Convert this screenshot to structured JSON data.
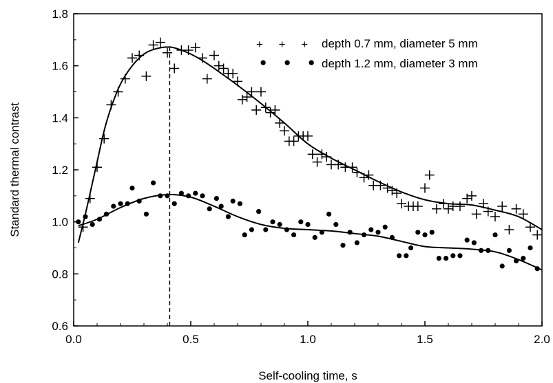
{
  "chart_data": {
    "type": "scatter",
    "title": "",
    "xlabel": "Self-cooling time, s",
    "ylabel": "Standard thermal contrast",
    "xlim": [
      0.0,
      2.0
    ],
    "ylim": [
      0.6,
      1.8
    ],
    "x_ticks": [
      0.0,
      0.5,
      1.0,
      1.5,
      2.0
    ],
    "x_tick_labels": [
      "0.0",
      "0.5",
      "1.0",
      "1.5",
      "2.0"
    ],
    "y_ticks": [
      0.6,
      0.8,
      1.0,
      1.2,
      1.4,
      1.6,
      1.8
    ],
    "y_tick_labels": [
      "0.6",
      "0.8",
      "1.0",
      "1.2",
      "1.4",
      "1.6",
      "1.8"
    ],
    "grid": false,
    "legend_position": "top-right",
    "marker_line": {
      "x": 0.41,
      "y_from": 0.6,
      "y_to": 1.67,
      "style": "dashed"
    },
    "series": [
      {
        "name": "depth 0.7 mm, diameter 5 mm",
        "marker": "plus",
        "legend_symbol": "+ + +",
        "points": [
          [
            0.04,
            0.98
          ],
          [
            0.07,
            1.09
          ],
          [
            0.1,
            1.21
          ],
          [
            0.13,
            1.32
          ],
          [
            0.16,
            1.45
          ],
          [
            0.19,
            1.5
          ],
          [
            0.22,
            1.55
          ],
          [
            0.25,
            1.63
          ],
          [
            0.28,
            1.64
          ],
          [
            0.31,
            1.56
          ],
          [
            0.34,
            1.68
          ],
          [
            0.37,
            1.69
          ],
          [
            0.4,
            1.65
          ],
          [
            0.43,
            1.59
          ],
          [
            0.46,
            1.66
          ],
          [
            0.49,
            1.66
          ],
          [
            0.52,
            1.67
          ],
          [
            0.55,
            1.63
          ],
          [
            0.57,
            1.55
          ],
          [
            0.6,
            1.64
          ],
          [
            0.62,
            1.6
          ],
          [
            0.64,
            1.59
          ],
          [
            0.66,
            1.57
          ],
          [
            0.68,
            1.57
          ],
          [
            0.7,
            1.54
          ],
          [
            0.72,
            1.47
          ],
          [
            0.74,
            1.48
          ],
          [
            0.76,
            1.5
          ],
          [
            0.78,
            1.43
          ],
          [
            0.8,
            1.5
          ],
          [
            0.82,
            1.44
          ],
          [
            0.84,
            1.42
          ],
          [
            0.86,
            1.43
          ],
          [
            0.88,
            1.38
          ],
          [
            0.9,
            1.35
          ],
          [
            0.92,
            1.31
          ],
          [
            0.94,
            1.31
          ],
          [
            0.96,
            1.33
          ],
          [
            0.98,
            1.33
          ],
          [
            1.0,
            1.33
          ],
          [
            1.02,
            1.26
          ],
          [
            1.04,
            1.23
          ],
          [
            1.06,
            1.26
          ],
          [
            1.08,
            1.25
          ],
          [
            1.1,
            1.22
          ],
          [
            1.13,
            1.22
          ],
          [
            1.16,
            1.21
          ],
          [
            1.19,
            1.21
          ],
          [
            1.21,
            1.19
          ],
          [
            1.24,
            1.17
          ],
          [
            1.26,
            1.18
          ],
          [
            1.28,
            1.14
          ],
          [
            1.31,
            1.14
          ],
          [
            1.34,
            1.13
          ],
          [
            1.36,
            1.12
          ],
          [
            1.38,
            1.11
          ],
          [
            1.4,
            1.07
          ],
          [
            1.43,
            1.06
          ],
          [
            1.45,
            1.06
          ],
          [
            1.47,
            1.06
          ],
          [
            1.5,
            1.13
          ],
          [
            1.52,
            1.18
          ],
          [
            1.55,
            1.05
          ],
          [
            1.58,
            1.07
          ],
          [
            1.6,
            1.05
          ],
          [
            1.62,
            1.06
          ],
          [
            1.65,
            1.06
          ],
          [
            1.68,
            1.09
          ],
          [
            1.7,
            1.1
          ],
          [
            1.72,
            1.03
          ],
          [
            1.75,
            1.07
          ],
          [
            1.77,
            1.04
          ],
          [
            1.8,
            1.02
          ],
          [
            1.83,
            1.06
          ],
          [
            1.86,
            0.97
          ],
          [
            1.89,
            1.05
          ],
          [
            1.92,
            1.03
          ],
          [
            1.95,
            0.98
          ],
          [
            1.98,
            0.95
          ]
        ],
        "fit_curve": [
          [
            0.02,
            0.92
          ],
          [
            0.05,
            1.03
          ],
          [
            0.08,
            1.15
          ],
          [
            0.1,
            1.23
          ],
          [
            0.13,
            1.35
          ],
          [
            0.16,
            1.44
          ],
          [
            0.2,
            1.53
          ],
          [
            0.25,
            1.6
          ],
          [
            0.3,
            1.645
          ],
          [
            0.35,
            1.665
          ],
          [
            0.41,
            1.672
          ],
          [
            0.46,
            1.66
          ],
          [
            0.5,
            1.645
          ],
          [
            0.55,
            1.62
          ],
          [
            0.6,
            1.59
          ],
          [
            0.7,
            1.525
          ],
          [
            0.8,
            1.455
          ],
          [
            0.9,
            1.38
          ],
          [
            1.0,
            1.3
          ],
          [
            1.1,
            1.245
          ],
          [
            1.2,
            1.2
          ],
          [
            1.3,
            1.155
          ],
          [
            1.4,
            1.115
          ],
          [
            1.5,
            1.085
          ],
          [
            1.6,
            1.07
          ],
          [
            1.7,
            1.065
          ],
          [
            1.8,
            1.045
          ],
          [
            1.9,
            1.02
          ],
          [
            2.0,
            0.97
          ]
        ]
      },
      {
        "name": "depth 1.2 mm, diameter 3 mm",
        "marker": "dot",
        "legend_symbol": "● ● ●",
        "points": [
          [
            0.02,
            1.0
          ],
          [
            0.05,
            1.02
          ],
          [
            0.08,
            0.99
          ],
          [
            0.11,
            1.01
          ],
          [
            0.14,
            1.03
          ],
          [
            0.17,
            1.06
          ],
          [
            0.2,
            1.07
          ],
          [
            0.23,
            1.07
          ],
          [
            0.25,
            1.13
          ],
          [
            0.28,
            1.08
          ],
          [
            0.31,
            1.03
          ],
          [
            0.34,
            1.15
          ],
          [
            0.37,
            1.1
          ],
          [
            0.4,
            1.1
          ],
          [
            0.43,
            1.07
          ],
          [
            0.46,
            1.11
          ],
          [
            0.49,
            1.1
          ],
          [
            0.52,
            1.11
          ],
          [
            0.55,
            1.1
          ],
          [
            0.58,
            1.05
          ],
          [
            0.61,
            1.09
          ],
          [
            0.63,
            1.06
          ],
          [
            0.66,
            1.02
          ],
          [
            0.68,
            1.08
          ],
          [
            0.71,
            1.07
          ],
          [
            0.73,
            0.95
          ],
          [
            0.76,
            0.97
          ],
          [
            0.79,
            1.04
          ],
          [
            0.82,
            0.97
          ],
          [
            0.85,
            1.0
          ],
          [
            0.88,
            0.99
          ],
          [
            0.91,
            0.97
          ],
          [
            0.94,
            0.95
          ],
          [
            0.97,
            1.0
          ],
          [
            1.0,
            0.99
          ],
          [
            1.03,
            0.94
          ],
          [
            1.06,
            0.96
          ],
          [
            1.09,
            1.03
          ],
          [
            1.12,
            0.99
          ],
          [
            1.15,
            0.91
          ],
          [
            1.18,
            0.96
          ],
          [
            1.21,
            0.92
          ],
          [
            1.24,
            0.95
          ],
          [
            1.27,
            0.97
          ],
          [
            1.3,
            0.96
          ],
          [
            1.33,
            0.98
          ],
          [
            1.36,
            0.94
          ],
          [
            1.39,
            0.87
          ],
          [
            1.42,
            0.87
          ],
          [
            1.44,
            0.9
          ],
          [
            1.47,
            0.96
          ],
          [
            1.5,
            0.95
          ],
          [
            1.53,
            0.96
          ],
          [
            1.56,
            0.86
          ],
          [
            1.59,
            0.86
          ],
          [
            1.62,
            0.87
          ],
          [
            1.65,
            0.87
          ],
          [
            1.68,
            0.93
          ],
          [
            1.71,
            0.92
          ],
          [
            1.74,
            0.89
          ],
          [
            1.77,
            0.89
          ],
          [
            1.8,
            0.95
          ],
          [
            1.83,
            0.83
          ],
          [
            1.86,
            0.89
          ],
          [
            1.89,
            0.85
          ],
          [
            1.92,
            0.86
          ],
          [
            1.95,
            0.9
          ],
          [
            1.98,
            0.82
          ]
        ],
        "fit_curve": [
          [
            0.02,
            0.985
          ],
          [
            0.1,
            1.01
          ],
          [
            0.2,
            1.055
          ],
          [
            0.3,
            1.09
          ],
          [
            0.4,
            1.105
          ],
          [
            0.5,
            1.095
          ],
          [
            0.6,
            1.06
          ],
          [
            0.7,
            1.02
          ],
          [
            0.8,
            0.99
          ],
          [
            0.9,
            0.975
          ],
          [
            1.0,
            0.97
          ],
          [
            1.1,
            0.965
          ],
          [
            1.2,
            0.955
          ],
          [
            1.3,
            0.945
          ],
          [
            1.4,
            0.925
          ],
          [
            1.5,
            0.905
          ],
          [
            1.6,
            0.9
          ],
          [
            1.7,
            0.895
          ],
          [
            1.8,
            0.885
          ],
          [
            1.9,
            0.855
          ],
          [
            2.0,
            0.815
          ]
        ]
      }
    ]
  }
}
